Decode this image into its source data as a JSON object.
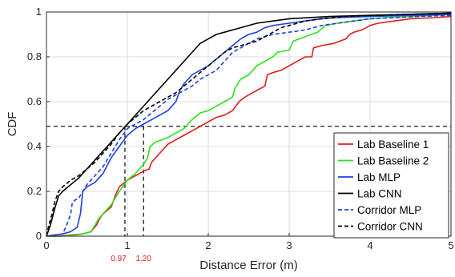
{
  "chart_data": {
    "type": "line",
    "xlabel": "Distance Error (m)",
    "ylabel": "CDF",
    "xlim": [
      0,
      5
    ],
    "ylim": [
      0,
      1
    ],
    "x_ticks": [
      "0",
      "1",
      "2",
      "3",
      "4",
      "5"
    ],
    "y_ticks": [
      "0",
      "0.2",
      "0.4",
      "0.6",
      "0.8",
      "1"
    ],
    "grid": true,
    "legend_position": "bottom-right",
    "series": [
      {
        "name": "Lab Baseline 1",
        "color": "#e41a1c",
        "dash": "solid",
        "points": [
          [
            0,
            0
          ],
          [
            0.15,
            0
          ],
          [
            0.3,
            0.005
          ],
          [
            0.45,
            0.01
          ],
          [
            0.55,
            0.02
          ],
          [
            0.62,
            0.05
          ],
          [
            0.66,
            0.08
          ],
          [
            0.7,
            0.1
          ],
          [
            0.8,
            0.13
          ],
          [
            0.85,
            0.18
          ],
          [
            0.9,
            0.22
          ],
          [
            1.0,
            0.25
          ],
          [
            1.1,
            0.27
          ],
          [
            1.2,
            0.29
          ],
          [
            1.27,
            0.3
          ],
          [
            1.3,
            0.33
          ],
          [
            1.4,
            0.37
          ],
          [
            1.5,
            0.41
          ],
          [
            1.6,
            0.43
          ],
          [
            1.7,
            0.45
          ],
          [
            1.8,
            0.47
          ],
          [
            1.9,
            0.49
          ],
          [
            2.0,
            0.51
          ],
          [
            2.1,
            0.53
          ],
          [
            2.2,
            0.54
          ],
          [
            2.3,
            0.56
          ],
          [
            2.38,
            0.6
          ],
          [
            2.45,
            0.62
          ],
          [
            2.5,
            0.63
          ],
          [
            2.6,
            0.65
          ],
          [
            2.7,
            0.67
          ],
          [
            2.73,
            0.72
          ],
          [
            2.8,
            0.73
          ],
          [
            2.9,
            0.74
          ],
          [
            3.0,
            0.76
          ],
          [
            3.1,
            0.78
          ],
          [
            3.2,
            0.8
          ],
          [
            3.28,
            0.8
          ],
          [
            3.3,
            0.84
          ],
          [
            3.4,
            0.85
          ],
          [
            3.55,
            0.86
          ],
          [
            3.7,
            0.88
          ],
          [
            3.75,
            0.9
          ],
          [
            3.8,
            0.91
          ],
          [
            3.9,
            0.92
          ],
          [
            4.0,
            0.94
          ],
          [
            4.1,
            0.95
          ],
          [
            4.3,
            0.96
          ],
          [
            4.5,
            0.97
          ],
          [
            4.8,
            0.975
          ],
          [
            5.0,
            0.98
          ]
        ]
      },
      {
        "name": "Lab Baseline 2",
        "color": "#2ee01c",
        "dash": "solid",
        "points": [
          [
            0,
            0
          ],
          [
            0.2,
            0
          ],
          [
            0.35,
            0.005
          ],
          [
            0.45,
            0.01
          ],
          [
            0.55,
            0.02
          ],
          [
            0.6,
            0.05
          ],
          [
            0.65,
            0.08
          ],
          [
            0.7,
            0.1
          ],
          [
            0.8,
            0.14
          ],
          [
            0.9,
            0.2
          ],
          [
            1.0,
            0.25
          ],
          [
            1.1,
            0.28
          ],
          [
            1.2,
            0.32
          ],
          [
            1.25,
            0.35
          ],
          [
            1.28,
            0.4
          ],
          [
            1.35,
            0.42
          ],
          [
            1.5,
            0.44
          ],
          [
            1.6,
            0.46
          ],
          [
            1.7,
            0.48
          ],
          [
            1.8,
            0.52
          ],
          [
            1.9,
            0.55
          ],
          [
            2.0,
            0.56
          ],
          [
            2.1,
            0.58
          ],
          [
            2.2,
            0.6
          ],
          [
            2.3,
            0.62
          ],
          [
            2.33,
            0.66
          ],
          [
            2.4,
            0.7
          ],
          [
            2.5,
            0.72
          ],
          [
            2.6,
            0.76
          ],
          [
            2.7,
            0.78
          ],
          [
            2.8,
            0.8
          ],
          [
            2.85,
            0.82
          ],
          [
            3.0,
            0.83
          ],
          [
            3.05,
            0.87
          ],
          [
            3.2,
            0.89
          ],
          [
            3.35,
            0.91
          ],
          [
            3.45,
            0.94
          ],
          [
            3.6,
            0.95
          ],
          [
            3.8,
            0.96
          ],
          [
            4.0,
            0.97
          ],
          [
            4.2,
            0.975
          ],
          [
            4.5,
            0.98
          ],
          [
            4.8,
            0.985
          ],
          [
            5.0,
            0.99
          ]
        ]
      },
      {
        "name": "Lab MLP",
        "color": "#1f3fe0",
        "dash": "solid",
        "points": [
          [
            0,
            0
          ],
          [
            0.1,
            0.005
          ],
          [
            0.2,
            0.01
          ],
          [
            0.3,
            0.02
          ],
          [
            0.38,
            0.04
          ],
          [
            0.42,
            0.1
          ],
          [
            0.45,
            0.2
          ],
          [
            0.5,
            0.22
          ],
          [
            0.6,
            0.24
          ],
          [
            0.7,
            0.28
          ],
          [
            0.8,
            0.35
          ],
          [
            0.9,
            0.4
          ],
          [
            1.0,
            0.45
          ],
          [
            1.1,
            0.48
          ],
          [
            1.2,
            0.5
          ],
          [
            1.3,
            0.52
          ],
          [
            1.4,
            0.54
          ],
          [
            1.5,
            0.56
          ],
          [
            1.6,
            0.6
          ],
          [
            1.65,
            0.65
          ],
          [
            1.7,
            0.68
          ],
          [
            1.75,
            0.7
          ],
          [
            1.8,
            0.72
          ],
          [
            1.9,
            0.74
          ],
          [
            2.0,
            0.76
          ],
          [
            2.1,
            0.79
          ],
          [
            2.2,
            0.82
          ],
          [
            2.3,
            0.85
          ],
          [
            2.4,
            0.88
          ],
          [
            2.5,
            0.9
          ],
          [
            2.6,
            0.91
          ],
          [
            2.7,
            0.93
          ],
          [
            2.8,
            0.94
          ],
          [
            3.0,
            0.95
          ],
          [
            3.2,
            0.96
          ],
          [
            3.4,
            0.97
          ],
          [
            3.6,
            0.975
          ],
          [
            4.0,
            0.98
          ],
          [
            4.5,
            0.985
          ],
          [
            5.0,
            0.99
          ]
        ]
      },
      {
        "name": "Lab CNN",
        "color": "#000000",
        "dash": "solid",
        "points": [
          [
            0,
            0
          ],
          [
            0.05,
            0.05
          ],
          [
            0.1,
            0.12
          ],
          [
            0.15,
            0.18
          ],
          [
            0.2,
            0.2
          ],
          [
            0.3,
            0.23
          ],
          [
            0.4,
            0.26
          ],
          [
            0.5,
            0.3
          ],
          [
            0.6,
            0.34
          ],
          [
            0.7,
            0.38
          ],
          [
            0.8,
            0.42
          ],
          [
            0.9,
            0.46
          ],
          [
            1.0,
            0.5
          ],
          [
            1.1,
            0.54
          ],
          [
            1.2,
            0.58
          ],
          [
            1.3,
            0.62
          ],
          [
            1.4,
            0.66
          ],
          [
            1.5,
            0.7
          ],
          [
            1.6,
            0.74
          ],
          [
            1.7,
            0.78
          ],
          [
            1.8,
            0.82
          ],
          [
            1.9,
            0.86
          ],
          [
            2.0,
            0.88
          ],
          [
            2.1,
            0.9
          ],
          [
            2.2,
            0.91
          ],
          [
            2.4,
            0.93
          ],
          [
            2.6,
            0.95
          ],
          [
            2.8,
            0.96
          ],
          [
            3.0,
            0.97
          ],
          [
            3.5,
            0.98
          ],
          [
            4.0,
            0.985
          ],
          [
            4.5,
            0.99
          ],
          [
            5.0,
            0.995
          ]
        ]
      },
      {
        "name": "Corridor MLP",
        "color": "#1f3fe0",
        "dash": "dashed",
        "points": [
          [
            0,
            0
          ],
          [
            0.1,
            0.005
          ],
          [
            0.2,
            0.01
          ],
          [
            0.25,
            0.05
          ],
          [
            0.3,
            0.1
          ],
          [
            0.32,
            0.15
          ],
          [
            0.35,
            0.16
          ],
          [
            0.4,
            0.17
          ],
          [
            0.45,
            0.2
          ],
          [
            0.5,
            0.23
          ],
          [
            0.6,
            0.27
          ],
          [
            0.7,
            0.31
          ],
          [
            0.8,
            0.37
          ],
          [
            0.9,
            0.43
          ],
          [
            1.0,
            0.48
          ],
          [
            1.1,
            0.5
          ],
          [
            1.2,
            0.52
          ],
          [
            1.3,
            0.55
          ],
          [
            1.4,
            0.58
          ],
          [
            1.5,
            0.61
          ],
          [
            1.6,
            0.63
          ],
          [
            1.7,
            0.65
          ],
          [
            1.8,
            0.67
          ],
          [
            1.9,
            0.7
          ],
          [
            2.0,
            0.72
          ],
          [
            2.1,
            0.74
          ],
          [
            2.2,
            0.78
          ],
          [
            2.3,
            0.82
          ],
          [
            2.4,
            0.84
          ],
          [
            2.5,
            0.86
          ],
          [
            2.6,
            0.88
          ],
          [
            2.7,
            0.89
          ],
          [
            2.8,
            0.9
          ],
          [
            3.0,
            0.91
          ],
          [
            3.2,
            0.92
          ],
          [
            3.4,
            0.94
          ],
          [
            3.6,
            0.95
          ],
          [
            3.8,
            0.96
          ],
          [
            4.0,
            0.97
          ],
          [
            4.3,
            0.975
          ],
          [
            4.6,
            0.98
          ],
          [
            5.0,
            0.985
          ]
        ]
      },
      {
        "name": "Corridor CNN",
        "color": "#000000",
        "dash": "dashed",
        "points": [
          [
            0,
            0
          ],
          [
            0.03,
            0.05
          ],
          [
            0.07,
            0.1
          ],
          [
            0.1,
            0.15
          ],
          [
            0.15,
            0.2
          ],
          [
            0.2,
            0.22
          ],
          [
            0.3,
            0.25
          ],
          [
            0.4,
            0.27
          ],
          [
            0.5,
            0.3
          ],
          [
            0.6,
            0.33
          ],
          [
            0.7,
            0.37
          ],
          [
            0.8,
            0.41
          ],
          [
            0.9,
            0.46
          ],
          [
            1.0,
            0.5
          ],
          [
            1.1,
            0.53
          ],
          [
            1.2,
            0.56
          ],
          [
            1.3,
            0.58
          ],
          [
            1.4,
            0.6
          ],
          [
            1.5,
            0.62
          ],
          [
            1.6,
            0.64
          ],
          [
            1.7,
            0.67
          ],
          [
            1.8,
            0.7
          ],
          [
            1.9,
            0.73
          ],
          [
            2.0,
            0.76
          ],
          [
            2.1,
            0.79
          ],
          [
            2.2,
            0.82
          ],
          [
            2.3,
            0.84
          ],
          [
            2.4,
            0.85
          ],
          [
            2.5,
            0.86
          ],
          [
            2.6,
            0.87
          ],
          [
            2.7,
            0.89
          ],
          [
            2.8,
            0.91
          ],
          [
            2.9,
            0.93
          ],
          [
            3.0,
            0.94
          ],
          [
            3.2,
            0.96
          ],
          [
            3.4,
            0.97
          ],
          [
            3.7,
            0.98
          ],
          [
            4.0,
            0.985
          ],
          [
            4.5,
            0.99
          ],
          [
            5.0,
            0.995
          ]
        ]
      }
    ],
    "reference_lines": {
      "horizontal": {
        "y": 0.49,
        "color": "#000000",
        "dash": "dashed"
      },
      "vertical": [
        {
          "x": 0.97,
          "label": "0.97",
          "label_color": "#e41a1c"
        },
        {
          "x": 1.2,
          "label": "1.20",
          "label_color": "#e41a1c"
        }
      ]
    }
  }
}
